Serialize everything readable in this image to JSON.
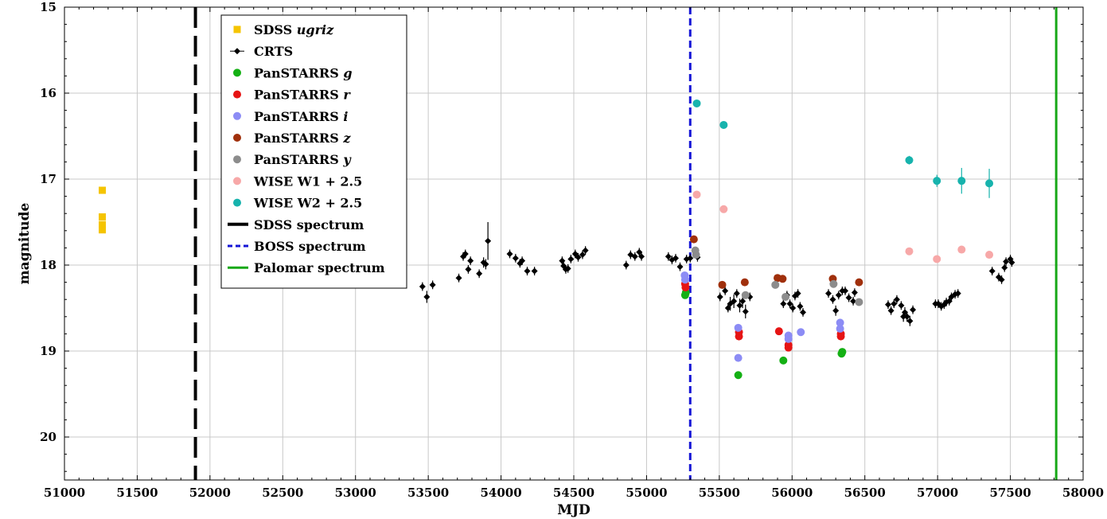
{
  "chart_data": {
    "type": "scatter",
    "xlabel": "MJD",
    "ylabel": "magnitude",
    "xlim": [
      51000,
      58000
    ],
    "ylim": [
      20.5,
      15
    ],
    "y_inverted": true,
    "grid": true,
    "x_ticks": [
      51000,
      51500,
      52000,
      52500,
      53000,
      53500,
      54000,
      54500,
      55000,
      55500,
      56000,
      56500,
      57000,
      57500,
      58000
    ],
    "y_ticks": [
      15,
      16,
      17,
      18,
      19,
      20
    ],
    "legend_position": "top-left",
    "vlines": [
      {
        "name": "SDSS spectrum",
        "x": 51900,
        "color": "#000000",
        "style": "long-dash"
      },
      {
        "name": "BOSS spectrum",
        "x": 55300,
        "color": "#1515d6",
        "style": "dash"
      },
      {
        "name": "Palomar spectrum",
        "x": 57815,
        "color": "#17a817",
        "style": "solid"
      }
    ],
    "series": [
      {
        "name": "SDSS ugriz",
        "name_main": "SDSS ",
        "name_italic": "ugriz",
        "color": "#f5c400",
        "marker": "square",
        "points": [
          [
            51260,
            17.13
          ],
          [
            51260,
            17.44
          ],
          [
            51260,
            17.53
          ],
          [
            51260,
            17.59
          ]
        ]
      },
      {
        "name": "CRTS",
        "name_main": "CRTS",
        "name_italic": "",
        "color": "#000000",
        "marker": "diamond",
        "points": [
          [
            53460,
            18.25,
            0.05
          ],
          [
            53490,
            18.37,
            0.07
          ],
          [
            53530,
            18.23,
            0.05
          ],
          [
            53710,
            18.15,
            0.05
          ],
          [
            53740,
            17.9,
            0.05
          ],
          [
            53755,
            17.87,
            0.05
          ],
          [
            53775,
            18.05,
            0.05
          ],
          [
            53790,
            17.95,
            0.05
          ],
          [
            53850,
            18.1,
            0.05
          ],
          [
            53880,
            17.97,
            0.06
          ],
          [
            53895,
            17.99,
            0.06
          ],
          [
            53910,
            17.72,
            0.22
          ],
          [
            54060,
            17.87,
            0.05
          ],
          [
            54100,
            17.92,
            0.05
          ],
          [
            54130,
            17.98,
            0.05
          ],
          [
            54145,
            17.95,
            0.05
          ],
          [
            54180,
            18.07,
            0.05
          ],
          [
            54230,
            18.07,
            0.05
          ],
          [
            54420,
            17.95,
            0.05
          ],
          [
            54430,
            18.01,
            0.05
          ],
          [
            54445,
            18.05,
            0.05
          ],
          [
            54460,
            18.04,
            0.05
          ],
          [
            54480,
            17.93,
            0.05
          ],
          [
            54510,
            17.87,
            0.05
          ],
          [
            54530,
            17.91,
            0.05
          ],
          [
            54560,
            17.88,
            0.05
          ],
          [
            54580,
            17.83,
            0.05
          ],
          [
            54860,
            18.0,
            0.05
          ],
          [
            54890,
            17.88,
            0.05
          ],
          [
            54920,
            17.9,
            0.05
          ],
          [
            54950,
            17.85,
            0.05
          ],
          [
            54965,
            17.9,
            0.05
          ],
          [
            55150,
            17.9,
            0.05
          ],
          [
            55175,
            17.94,
            0.05
          ],
          [
            55200,
            17.92,
            0.05
          ],
          [
            55230,
            18.02,
            0.05
          ],
          [
            55275,
            17.93,
            0.05
          ],
          [
            55300,
            17.92,
            0.05
          ],
          [
            55350,
            17.91,
            0.05
          ],
          [
            55505,
            18.37,
            0.05
          ],
          [
            55540,
            18.3,
            0.05
          ],
          [
            55560,
            18.5,
            0.05
          ],
          [
            55575,
            18.45,
            0.08
          ],
          [
            55600,
            18.42,
            0.08
          ],
          [
            55620,
            18.33,
            0.05
          ],
          [
            55640,
            18.47,
            0.08
          ],
          [
            55660,
            18.42,
            0.08
          ],
          [
            55680,
            18.54,
            0.08
          ],
          [
            55710,
            18.37,
            0.05
          ],
          [
            55940,
            18.45,
            0.05
          ],
          [
            55965,
            18.35,
            0.05
          ],
          [
            55985,
            18.45,
            0.05
          ],
          [
            56005,
            18.5,
            0.05
          ],
          [
            56020,
            18.36,
            0.05
          ],
          [
            56040,
            18.33,
            0.05
          ],
          [
            56055,
            18.48,
            0.05
          ],
          [
            56075,
            18.55,
            0.05
          ],
          [
            56250,
            18.33,
            0.05
          ],
          [
            56280,
            18.4,
            0.05
          ],
          [
            56300,
            18.53,
            0.06
          ],
          [
            56320,
            18.35,
            0.05
          ],
          [
            56345,
            18.3,
            0.05
          ],
          [
            56365,
            18.3,
            0.05
          ],
          [
            56390,
            18.38,
            0.05
          ],
          [
            56420,
            18.42,
            0.05
          ],
          [
            56430,
            18.32,
            0.05
          ],
          [
            56660,
            18.46,
            0.05
          ],
          [
            56680,
            18.53,
            0.05
          ],
          [
            56700,
            18.45,
            0.05
          ],
          [
            56720,
            18.4,
            0.05
          ],
          [
            56750,
            18.47,
            0.05
          ],
          [
            56765,
            18.6,
            0.06
          ],
          [
            56775,
            18.55,
            0.06
          ],
          [
            56790,
            18.6,
            0.06
          ],
          [
            56810,
            18.65,
            0.06
          ],
          [
            56830,
            18.52,
            0.05
          ],
          [
            56985,
            18.45,
            0.05
          ],
          [
            57005,
            18.45,
            0.05
          ],
          [
            57025,
            18.48,
            0.05
          ],
          [
            57045,
            18.46,
            0.05
          ],
          [
            57060,
            18.43,
            0.05
          ],
          [
            57080,
            18.42,
            0.05
          ],
          [
            57095,
            18.37,
            0.05
          ],
          [
            57120,
            18.34,
            0.05
          ],
          [
            57140,
            18.33,
            0.05
          ],
          [
            57375,
            18.07,
            0.05
          ],
          [
            57420,
            18.14,
            0.05
          ],
          [
            57440,
            18.17,
            0.05
          ],
          [
            57460,
            18.03,
            0.05
          ],
          [
            57470,
            17.96,
            0.05
          ],
          [
            57500,
            17.93,
            0.05
          ],
          [
            57510,
            17.97,
            0.05
          ]
        ]
      },
      {
        "name": "PanSTARRS g",
        "name_main": "PanSTARRS ",
        "name_italic": "g",
        "color": "#14b014",
        "marker": "circle",
        "points": [
          [
            55265,
            18.35
          ],
          [
            55270,
            18.32
          ],
          [
            55630,
            19.28
          ],
          [
            55940,
            19.11
          ],
          [
            56340,
            19.03
          ],
          [
            56345,
            19.01
          ]
        ]
      },
      {
        "name": "PanSTARRS r",
        "name_main": "PanSTARRS ",
        "name_italic": "r",
        "color": "#e61414",
        "marker": "circle",
        "points": [
          [
            55265,
            18.22
          ],
          [
            55268,
            18.26
          ],
          [
            55635,
            18.78
          ],
          [
            55635,
            18.83
          ],
          [
            55910,
            18.77
          ],
          [
            55975,
            18.93
          ],
          [
            55975,
            18.96
          ],
          [
            56335,
            18.8
          ],
          [
            56335,
            18.83
          ]
        ]
      },
      {
        "name": "PanSTARRS i",
        "name_main": "PanSTARRS ",
        "name_italic": "i",
        "color": "#8c8cf5",
        "marker": "circle",
        "points": [
          [
            55262,
            18.12
          ],
          [
            55265,
            18.17
          ],
          [
            55630,
            18.73
          ],
          [
            55630,
            19.08
          ],
          [
            55975,
            18.82
          ],
          [
            55975,
            18.86
          ],
          [
            56060,
            18.78
          ],
          [
            56330,
            18.67
          ],
          [
            56330,
            18.74
          ]
        ]
      },
      {
        "name": "PanSTARRS z",
        "name_main": "PanSTARRS ",
        "name_italic": "z",
        "color": "#a0300c",
        "marker": "circle",
        "points": [
          [
            55325,
            17.7
          ],
          [
            55520,
            18.23
          ],
          [
            55675,
            18.2
          ],
          [
            55900,
            18.15
          ],
          [
            55935,
            18.16
          ],
          [
            56280,
            18.16
          ],
          [
            56460,
            18.2
          ]
        ]
      },
      {
        "name": "PanSTARRS y",
        "name_main": "PanSTARRS ",
        "name_italic": "y",
        "color": "#8c8c8c",
        "marker": "circle",
        "points": [
          [
            55335,
            17.83
          ],
          [
            55340,
            17.88
          ],
          [
            55680,
            18.35
          ],
          [
            55885,
            18.23
          ],
          [
            55955,
            18.37
          ],
          [
            56285,
            18.22
          ],
          [
            56460,
            18.43
          ]
        ]
      },
      {
        "name": "WISE W1 + 2.5",
        "name_main": "WISE W1 + 2.5",
        "name_italic": "",
        "color": "#f7a8a8",
        "marker": "circle",
        "points": [
          [
            55345,
            17.18
          ],
          [
            55530,
            17.35
          ],
          [
            56805,
            17.84
          ],
          [
            56995,
            17.93
          ],
          [
            57165,
            17.82
          ],
          [
            57355,
            17.88
          ]
        ]
      },
      {
        "name": "WISE W2 + 2.5",
        "name_main": "WISE W2 + 2.5",
        "name_italic": "",
        "color": "#17b3ad",
        "marker": "circle",
        "points": [
          [
            55345,
            16.12,
            0.03
          ],
          [
            55530,
            16.37,
            0.03
          ],
          [
            56805,
            16.78,
            0.05
          ],
          [
            56995,
            17.02,
            0.07
          ],
          [
            57165,
            17.02,
            0.15
          ],
          [
            57355,
            17.05,
            0.17
          ]
        ]
      }
    ]
  }
}
